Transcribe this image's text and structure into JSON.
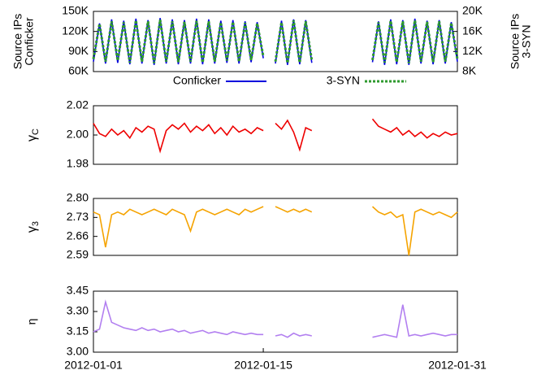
{
  "chart_data": [
    {
      "type": "line",
      "ylabel": [
        "Source IPs",
        "Conficker"
      ],
      "y2label": [
        "Source IPs",
        "3-SYN"
      ],
      "x": [
        0,
        0.5,
        1,
        1.5,
        2,
        2.5,
        3,
        3.5,
        4,
        4.5,
        5,
        5.5,
        6,
        6.5,
        7,
        7.5,
        8,
        8.5,
        9,
        9.5,
        10,
        10.5,
        11,
        11.5,
        12,
        12.5,
        13,
        13.5,
        14,
        14.5,
        15,
        15.5,
        16,
        16.5,
        17,
        17.5,
        18,
        20.5,
        23,
        23.5,
        24,
        24.5,
        25,
        25.5,
        26,
        26.5,
        27,
        27.5,
        28,
        28.5,
        29,
        29.5,
        30
      ],
      "xlim": [
        0,
        30
      ],
      "ylim": [
        60000,
        150000
      ],
      "yticks": [
        {
          "value": 60000,
          "label": "60K"
        },
        {
          "value": 90000,
          "label": "90K"
        },
        {
          "value": 120000,
          "label": "120K"
        },
        {
          "value": 150000,
          "label": "150K"
        }
      ],
      "y2lim": [
        8000,
        20000
      ],
      "y2ticks": [
        {
          "value": 8000,
          "label": "8K"
        },
        {
          "value": 12000,
          "label": "12K"
        },
        {
          "value": 16000,
          "label": "16K"
        },
        {
          "value": 20000,
          "label": "20K"
        }
      ],
      "legend": "below",
      "series": [
        {
          "name": "Conficker",
          "color": "#0000dd",
          "values": [
            75000,
            132000,
            72000,
            138000,
            73000,
            136000,
            71000,
            139000,
            72000,
            137000,
            70000,
            140000,
            72000,
            138000,
            71000,
            137000,
            72000,
            139000,
            71000,
            138000,
            72000,
            136000,
            73000,
            137000,
            72000,
            135000,
            74000,
            134000,
            80000,
            null,
            72000,
            136000,
            70000,
            138000,
            71000,
            137000,
            73000,
            null,
            74000,
            135000,
            70000,
            138000,
            71000,
            137000,
            70000,
            139000,
            72000,
            136000,
            71000,
            137000,
            72000,
            134000,
            75000
          ]
        },
        {
          "name": "3-SYN",
          "color": "#2e9a2e",
          "axis": "y2",
          "dashed": true,
          "values": [
            10500,
            17500,
            10000,
            18000,
            10200,
            17800,
            9800,
            18200,
            10000,
            18000,
            9700,
            18300,
            10000,
            18000,
            9900,
            17900,
            10000,
            18100,
            9800,
            18000,
            10000,
            17800,
            10200,
            17900,
            10000,
            17700,
            10300,
            17600,
            11000,
            null,
            10000,
            17800,
            9700,
            18200,
            9800,
            18000,
            10200,
            null,
            10300,
            17800,
            9800,
            18100,
            9900,
            18000,
            9700,
            18200,
            10000,
            17900,
            9900,
            18000,
            10000,
            17700,
            10500
          ]
        }
      ]
    },
    {
      "type": "line",
      "ylabel": {
        "symbol": "γ",
        "subscript": "C"
      },
      "x": [
        0,
        0.5,
        1,
        1.5,
        2,
        2.5,
        3,
        3.5,
        4,
        4.5,
        5,
        5.5,
        6,
        6.5,
        7,
        7.5,
        8,
        8.5,
        9,
        9.5,
        10,
        10.5,
        11,
        11.5,
        12,
        12.5,
        13,
        13.5,
        14,
        14.5,
        15,
        15.5,
        16,
        16.5,
        17,
        17.5,
        18,
        20.5,
        23,
        23.5,
        24,
        24.5,
        25,
        25.5,
        26,
        26.5,
        27,
        27.5,
        28,
        28.5,
        29,
        29.5,
        30
      ],
      "xlim": [
        0,
        30
      ],
      "ylim": [
        1.98,
        2.02
      ],
      "yticks": [
        {
          "value": 1.98,
          "label": "1.98"
        },
        {
          "value": 2,
          "label": "2.00"
        },
        {
          "value": 2.02,
          "label": "2.02"
        }
      ],
      "series": [
        {
          "name": "γC",
          "color": "#ee0000",
          "values": [
            2.008,
            2.001,
            1.999,
            2.004,
            2.0,
            2.003,
            1.998,
            2.005,
            2.002,
            2.006,
            2.004,
            1.989,
            2.003,
            2.007,
            2.004,
            2.008,
            2.002,
            2.006,
            2.003,
            2.007,
            2.001,
            2.005,
            2.0,
            2.006,
            2.002,
            2.004,
            2.001,
            2.005,
            2.003,
            null,
            2.008,
            2.004,
            2.01,
            2.002,
            1.99,
            2.005,
            2.003,
            null,
            2.011,
            2.006,
            2.004,
            2.002,
            2.005,
            2.0,
            2.003,
            1.999,
            2.002,
            1.998,
            2.001,
            1.999,
            2.002,
            2.0,
            2.001
          ]
        }
      ]
    },
    {
      "type": "line",
      "ylabel": {
        "symbol": "γ",
        "subscript": "3"
      },
      "x": [
        0,
        0.5,
        1,
        1.5,
        2,
        2.5,
        3,
        3.5,
        4,
        4.5,
        5,
        5.5,
        6,
        6.5,
        7,
        7.5,
        8,
        8.5,
        9,
        9.5,
        10,
        10.5,
        11,
        11.5,
        12,
        12.5,
        13,
        13.5,
        14,
        14.5,
        15,
        15.5,
        16,
        16.5,
        17,
        17.5,
        18,
        20.5,
        23,
        23.5,
        24,
        24.5,
        25,
        25.5,
        26,
        26.5,
        27,
        27.5,
        28,
        28.5,
        29,
        29.5,
        30
      ],
      "xlim": [
        0,
        30
      ],
      "ylim": [
        2.59,
        2.8
      ],
      "yticks": [
        2.59,
        2.66,
        2.73,
        {
          "value": 2.8,
          "label": "2.80"
        }
      ],
      "series": [
        {
          "name": "γ3",
          "color": "#f5a300",
          "values": [
            2.75,
            2.74,
            2.62,
            2.74,
            2.75,
            2.74,
            2.76,
            2.75,
            2.74,
            2.75,
            2.76,
            2.75,
            2.74,
            2.76,
            2.75,
            2.74,
            2.68,
            2.75,
            2.76,
            2.75,
            2.74,
            2.75,
            2.76,
            2.75,
            2.74,
            2.76,
            2.75,
            2.76,
            2.77,
            null,
            2.77,
            2.76,
            2.75,
            2.76,
            2.75,
            2.76,
            2.75,
            null,
            2.77,
            2.75,
            2.74,
            2.75,
            2.73,
            2.74,
            2.59,
            2.75,
            2.76,
            2.75,
            2.74,
            2.75,
            2.74,
            2.73,
            2.75
          ]
        }
      ]
    },
    {
      "type": "line",
      "ylabel": "η",
      "x": [
        0,
        0.5,
        1,
        1.5,
        2,
        2.5,
        3,
        3.5,
        4,
        4.5,
        5,
        5.5,
        6,
        6.5,
        7,
        7.5,
        8,
        8.5,
        9,
        9.5,
        10,
        10.5,
        11,
        11.5,
        12,
        12.5,
        13,
        13.5,
        14,
        14.5,
        15,
        15.5,
        16,
        16.5,
        17,
        17.5,
        18,
        20.5,
        23,
        23.5,
        24,
        24.5,
        25,
        25.5,
        26,
        26.5,
        27,
        27.5,
        28,
        28.5,
        29,
        29.5,
        30
      ],
      "xlim": [
        0,
        30
      ],
      "xticks": [
        {
          "value": 0,
          "label": "2012-01-01"
        },
        {
          "value": 14,
          "label": "2012-01-15"
        },
        {
          "value": 30,
          "label": "2012-01-31"
        }
      ],
      "ylim": [
        3,
        3.45
      ],
      "yticks": [
        {
          "value": 3,
          "label": "3.00"
        },
        3.15,
        {
          "value": 3.3,
          "label": "3.30"
        },
        3.45
      ],
      "series": [
        {
          "name": "η",
          "color": "#b27ff0",
          "values": [
            3.15,
            3.17,
            3.37,
            3.22,
            3.2,
            3.18,
            3.17,
            3.16,
            3.18,
            3.16,
            3.17,
            3.15,
            3.16,
            3.17,
            3.15,
            3.16,
            3.14,
            3.15,
            3.16,
            3.14,
            3.15,
            3.14,
            3.13,
            3.15,
            3.14,
            3.13,
            3.14,
            3.13,
            3.13,
            null,
            3.12,
            3.13,
            3.11,
            3.14,
            3.12,
            3.13,
            3.12,
            null,
            3.11,
            3.12,
            3.13,
            3.12,
            3.11,
            3.35,
            3.12,
            3.13,
            3.12,
            3.13,
            3.14,
            3.13,
            3.12,
            3.13,
            3.13
          ]
        }
      ]
    }
  ]
}
